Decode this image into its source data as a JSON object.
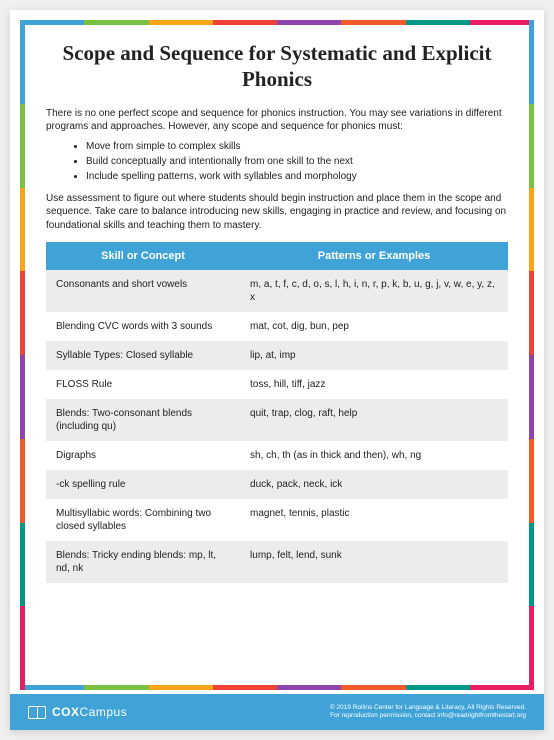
{
  "title": "Scope and Sequence for Systematic and Explicit Phonics",
  "intro": "There is no one perfect scope and sequence for phonics instruction. You may see variations in different programs and approaches. However, any scope and sequence for phonics must:",
  "bullets": [
    "Move from simple to complex skills",
    "Build conceptually and intentionally from one skill to the next",
    "Include spelling patterns, work with syllables and morphology"
  ],
  "para2": "Use assessment to figure out where students should begin instruction and place them in the scope and sequence. Take care to balance introducing new skills, engaging in practice and review, and focusing on foundational skills and teaching them to mastery.",
  "table": {
    "headers": [
      "Skill or Concept",
      "Patterns or Examples"
    ],
    "rows": [
      [
        "Consonants and short vowels",
        "m, a, t, f, c, d, o, s, l, h, i, n, r, p, k, b, u, g, j, v, w, e, y, z, x"
      ],
      [
        "Blending CVC words with 3 sounds",
        "mat, cot, dig, bun, pep"
      ],
      [
        "Syllable Types: Closed syllable",
        "lip, at, imp"
      ],
      [
        "FLOSS Rule",
        "toss, hill, tiff, jazz"
      ],
      [
        "Blends: Two-consonant blends (including qu)",
        "quit, trap, clog, raft, help"
      ],
      [
        "Digraphs",
        "sh, ch, th (as in thick and then), wh, ng"
      ],
      [
        "-ck spelling rule",
        "duck, pack, neck, ick"
      ],
      [
        "Multisyllabic words: Combining two closed syllables",
        "magnet, tennis, plastic"
      ],
      [
        "Blends: Tricky ending blends: mp, lt, nd, nk",
        "lump, felt, lend, sunk"
      ]
    ]
  },
  "footer": {
    "brand_prefix": "COX",
    "brand_suffix": "Campus",
    "credit1": "© 2019 Rollins Center for Language & Literacy, All Rights Reserved.",
    "credit2": "For reproduction permission, contact info@readrightfromthestart.org"
  },
  "frame_colors": [
    "#3fa3d8",
    "#7ac143",
    "#f9a51a",
    "#ef4136",
    "#8e44ad",
    "#f15a29",
    "#009688",
    "#e91e63"
  ]
}
